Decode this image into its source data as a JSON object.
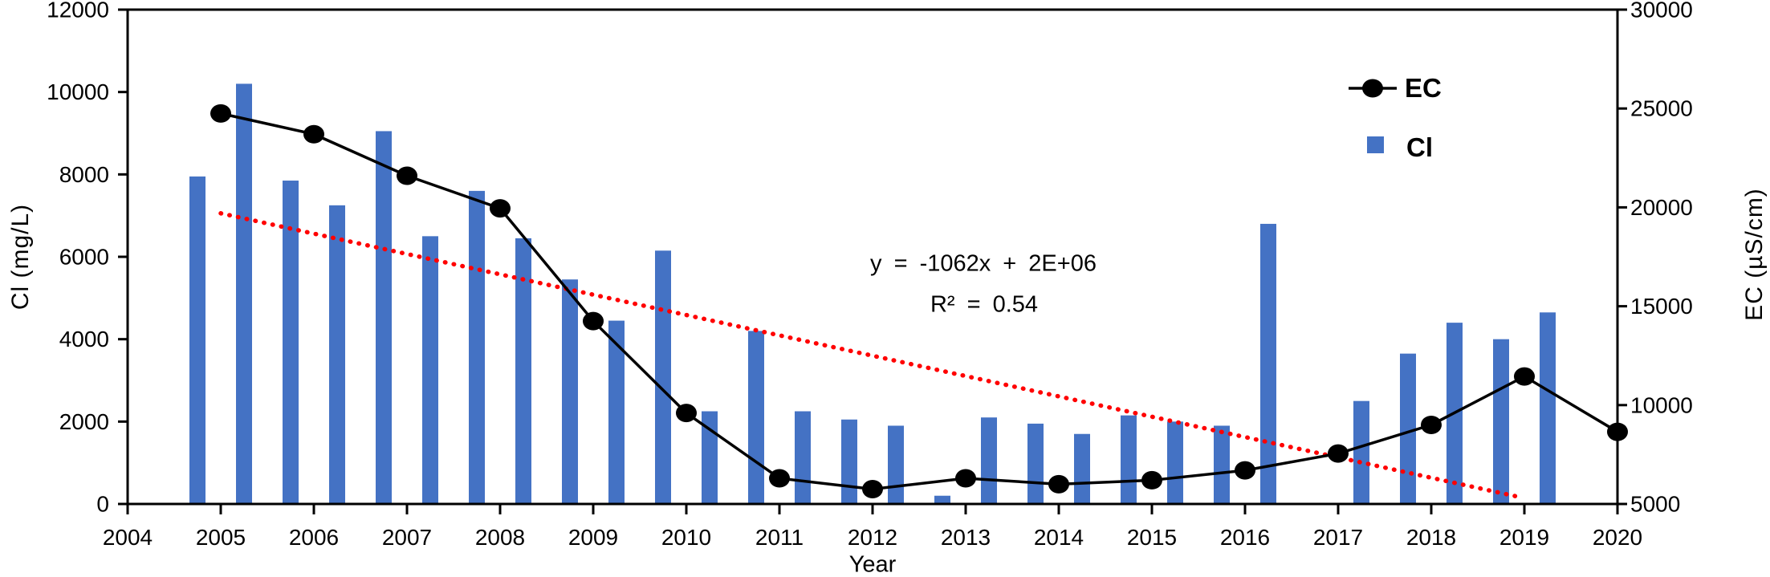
{
  "figure": {
    "x_axis": {
      "title": "Year",
      "min": 2004,
      "max": 2020,
      "tick_step": 1,
      "tick_labels": [
        "2004",
        "2005",
        "2006",
        "2007",
        "2008",
        "2009",
        "2010",
        "2011",
        "2012",
        "2013",
        "2014",
        "2015",
        "2016",
        "2017",
        "2018",
        "2019",
        "2020"
      ]
    },
    "left_axis": {
      "title": "Cl (mg/L)",
      "min": 0,
      "max": 12000,
      "tick_step": 2000,
      "tick_labels": [
        "0",
        "2000",
        "4000",
        "6000",
        "8000",
        "10000",
        "12000"
      ]
    },
    "right_axis": {
      "title": "EC (µS/cm)",
      "min": 5000,
      "max": 30000,
      "tick_step": 5000,
      "tick_labels": [
        "5000",
        "10000",
        "15000",
        "20000",
        "25000",
        "30000"
      ]
    },
    "legend": {
      "ec": "EC",
      "cl": "Cl"
    },
    "annotation": {
      "equation": "y = -1062x + 2E+06",
      "r2": "R² = 0.54"
    },
    "colors": {
      "bar": "#4472C4",
      "ec_line": "#000000",
      "trend": "#FF0000",
      "axis": "#000000"
    }
  },
  "chart_data": {
    "type": "bar+line dual-axis combination chart",
    "xlabel": "Year",
    "ylabel_left": "Cl (mg/L)",
    "ylabel_right": "EC (µS/cm)",
    "xlim": [
      2004,
      2020
    ],
    "left_ylim": [
      0,
      12000
    ],
    "right_ylim": [
      5000,
      30000
    ],
    "grid": false,
    "legend_position": "upper right inside plot",
    "series": [
      {
        "name": "Cl",
        "type": "bar",
        "axis": "left",
        "unit": "mg/L",
        "color": "#4472C4",
        "bar_width_years": 0.17,
        "x": [
          2004.75,
          2005.25,
          2005.75,
          2006.25,
          2006.75,
          2007.25,
          2007.75,
          2008.25,
          2008.75,
          2009.25,
          2009.75,
          2010.25,
          2010.75,
          2011.25,
          2011.75,
          2012.25,
          2012.75,
          2013.25,
          2013.75,
          2014.25,
          2014.75,
          2015.25,
          2015.75,
          2016.25,
          2017.25,
          2017.75,
          2018.25,
          2018.75,
          2019.25
        ],
        "values": [
          7950,
          10200,
          7850,
          7250,
          9050,
          6500,
          7600,
          6450,
          5450,
          4450,
          6150,
          2250,
          4200,
          2250,
          2050,
          1900,
          200,
          2100,
          1950,
          1700,
          2150,
          2000,
          1900,
          6800,
          2500,
          3650,
          4400,
          4000,
          4650
        ]
      },
      {
        "name": "EC",
        "type": "line",
        "axis": "right",
        "unit": "µS/cm",
        "color": "#000000",
        "marker": "filled-circle",
        "x": [
          2005,
          2006,
          2007,
          2008,
          2009,
          2010,
          2011,
          2012,
          2013,
          2014,
          2015,
          2016,
          2017,
          2018,
          2019,
          2020
        ],
        "values": [
          24750,
          23700,
          21600,
          19950,
          14250,
          9600,
          6300,
          5750,
          6300,
          6000,
          6200,
          6700,
          7550,
          9000,
          11450,
          8650
        ]
      },
      {
        "name": "EC linear trend",
        "type": "dotted-line",
        "axis": "right",
        "color": "#FF0000",
        "equation": "y = -1062x + 2E+06",
        "r2": "R² = 0.54",
        "x": [
          2005,
          2018.9
        ],
        "values": [
          19700,
          5400
        ]
      }
    ]
  }
}
